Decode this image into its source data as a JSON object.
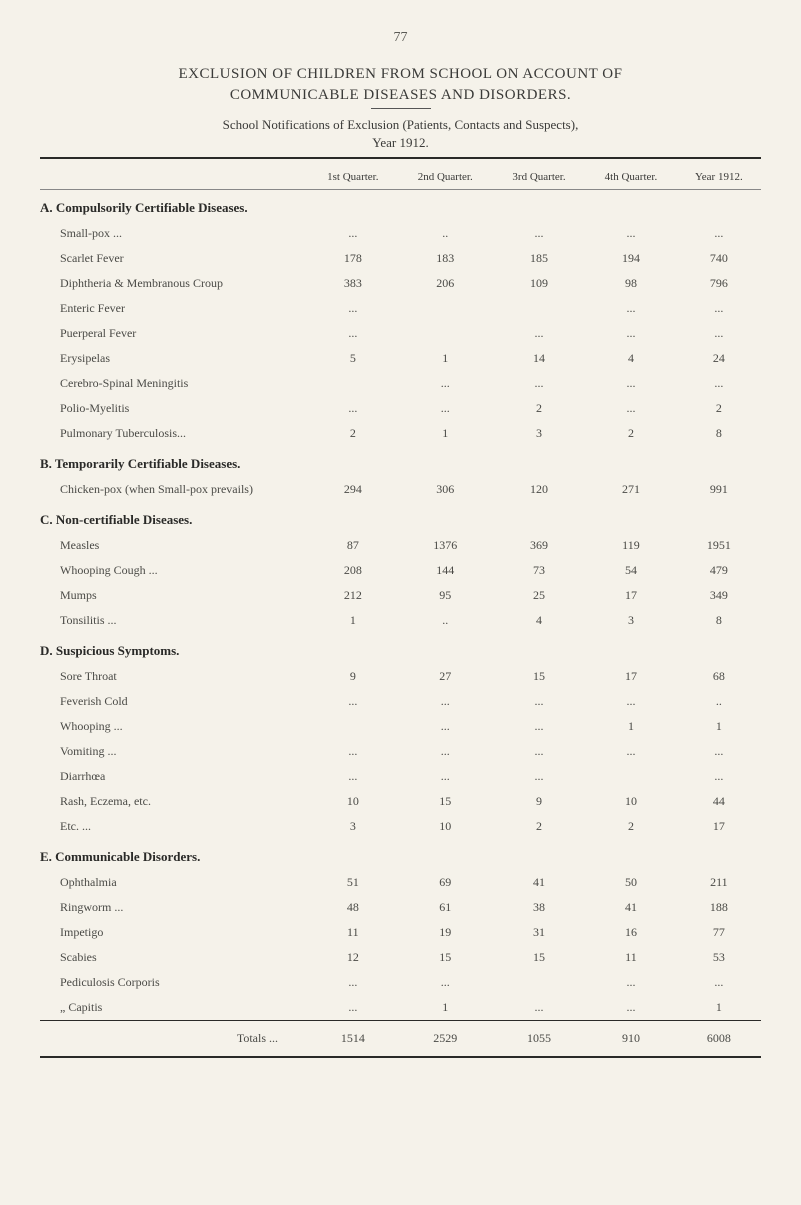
{
  "page_number": "77",
  "title_line1": "EXCLUSION OF CHILDREN FROM SCHOOL ON ACCOUNT OF",
  "title_line2": "COMMUNICABLE DISEASES AND DISORDERS.",
  "subtitle_line1": "School Notifications of Exclusion (Patients, Contacts and Suspects),",
  "subtitle_line2": "Year 1912.",
  "columns": [
    "",
    "1st Quarter.",
    "2nd Quarter.",
    "3rd Quarter.",
    "4th Quarter.",
    "Year 1912."
  ],
  "sections": [
    {
      "header": "A. Compulsorily Certifiable Diseases.",
      "rows": [
        {
          "label": "Small-pox ...",
          "values": [
            "...",
            "..",
            "...",
            "...",
            "..."
          ]
        },
        {
          "label": "Scarlet Fever",
          "values": [
            "178",
            "183",
            "185",
            "194",
            "740"
          ]
        },
        {
          "label": "Diphtheria & Membranous Croup",
          "values": [
            "383",
            "206",
            "109",
            "98",
            "796"
          ]
        },
        {
          "label": "Enteric Fever",
          "values": [
            "...",
            "",
            "",
            "...",
            "..."
          ]
        },
        {
          "label": "Puerperal Fever",
          "values": [
            "...",
            "",
            "...",
            "...",
            "..."
          ]
        },
        {
          "label": "Erysipelas",
          "values": [
            "5",
            "1",
            "14",
            "4",
            "24"
          ]
        },
        {
          "label": "Cerebro-Spinal Meningitis",
          "values": [
            "",
            "...",
            "...",
            "...",
            "..."
          ]
        },
        {
          "label": "Polio-Myelitis",
          "values": [
            "...",
            "...",
            "2",
            "...",
            "2"
          ]
        },
        {
          "label": "Pulmonary Tuberculosis...",
          "values": [
            "2",
            "1",
            "3",
            "2",
            "8"
          ]
        }
      ]
    },
    {
      "header": "B. Temporarily Certifiable Diseases.",
      "rows": [
        {
          "label": "Chicken-pox (when Small-pox prevails)",
          "values": [
            "294",
            "306",
            "120",
            "271",
            "991"
          ]
        }
      ]
    },
    {
      "header": "C. Non-certifiable Diseases.",
      "rows": [
        {
          "label": "Measles",
          "values": [
            "87",
            "1376",
            "369",
            "119",
            "1951"
          ]
        },
        {
          "label": "Whooping Cough ...",
          "values": [
            "208",
            "144",
            "73",
            "54",
            "479"
          ]
        },
        {
          "label": "Mumps",
          "values": [
            "212",
            "95",
            "25",
            "17",
            "349"
          ]
        },
        {
          "label": "Tonsilitis ...",
          "values": [
            "1",
            "..",
            "4",
            "3",
            "8"
          ]
        }
      ]
    },
    {
      "header": "D. Suspicious Symptoms.",
      "rows": [
        {
          "label": "Sore Throat",
          "values": [
            "9",
            "27",
            "15",
            "17",
            "68"
          ]
        },
        {
          "label": "Feverish Cold",
          "values": [
            "...",
            "...",
            "...",
            "...",
            ".."
          ]
        },
        {
          "label": "Whooping ...",
          "values": [
            "",
            "...",
            "...",
            "1",
            "1"
          ]
        },
        {
          "label": "Vomiting ...",
          "values": [
            "...",
            "...",
            "...",
            "...",
            "..."
          ]
        },
        {
          "label": "Diarrhœa",
          "values": [
            "...",
            "...",
            "...",
            "",
            "..."
          ]
        },
        {
          "label": "Rash, Eczema, etc.",
          "values": [
            "10",
            "15",
            "9",
            "10",
            "44"
          ]
        },
        {
          "label": "Etc. ...",
          "values": [
            "3",
            "10",
            "2",
            "2",
            "17"
          ]
        }
      ]
    },
    {
      "header": "E. Communicable Disorders.",
      "rows": [
        {
          "label": "Ophthalmia",
          "values": [
            "51",
            "69",
            "41",
            "50",
            "211"
          ]
        },
        {
          "label": "Ringworm ...",
          "values": [
            "48",
            "61",
            "38",
            "41",
            "188"
          ]
        },
        {
          "label": "Impetigo",
          "values": [
            "11",
            "19",
            "31",
            "16",
            "77"
          ]
        },
        {
          "label": "Scabies",
          "values": [
            "12",
            "15",
            "15",
            "11",
            "53"
          ]
        },
        {
          "label": "Pediculosis Corporis",
          "values": [
            "...",
            "...",
            "",
            "...",
            "..."
          ]
        },
        {
          "label": "„        Capitis",
          "values": [
            "...",
            "1",
            "...",
            "...",
            "1"
          ]
        }
      ]
    }
  ],
  "totals": {
    "label": "Totals ...",
    "values": [
      "1514",
      "2529",
      "1055",
      "910",
      "6008"
    ]
  }
}
